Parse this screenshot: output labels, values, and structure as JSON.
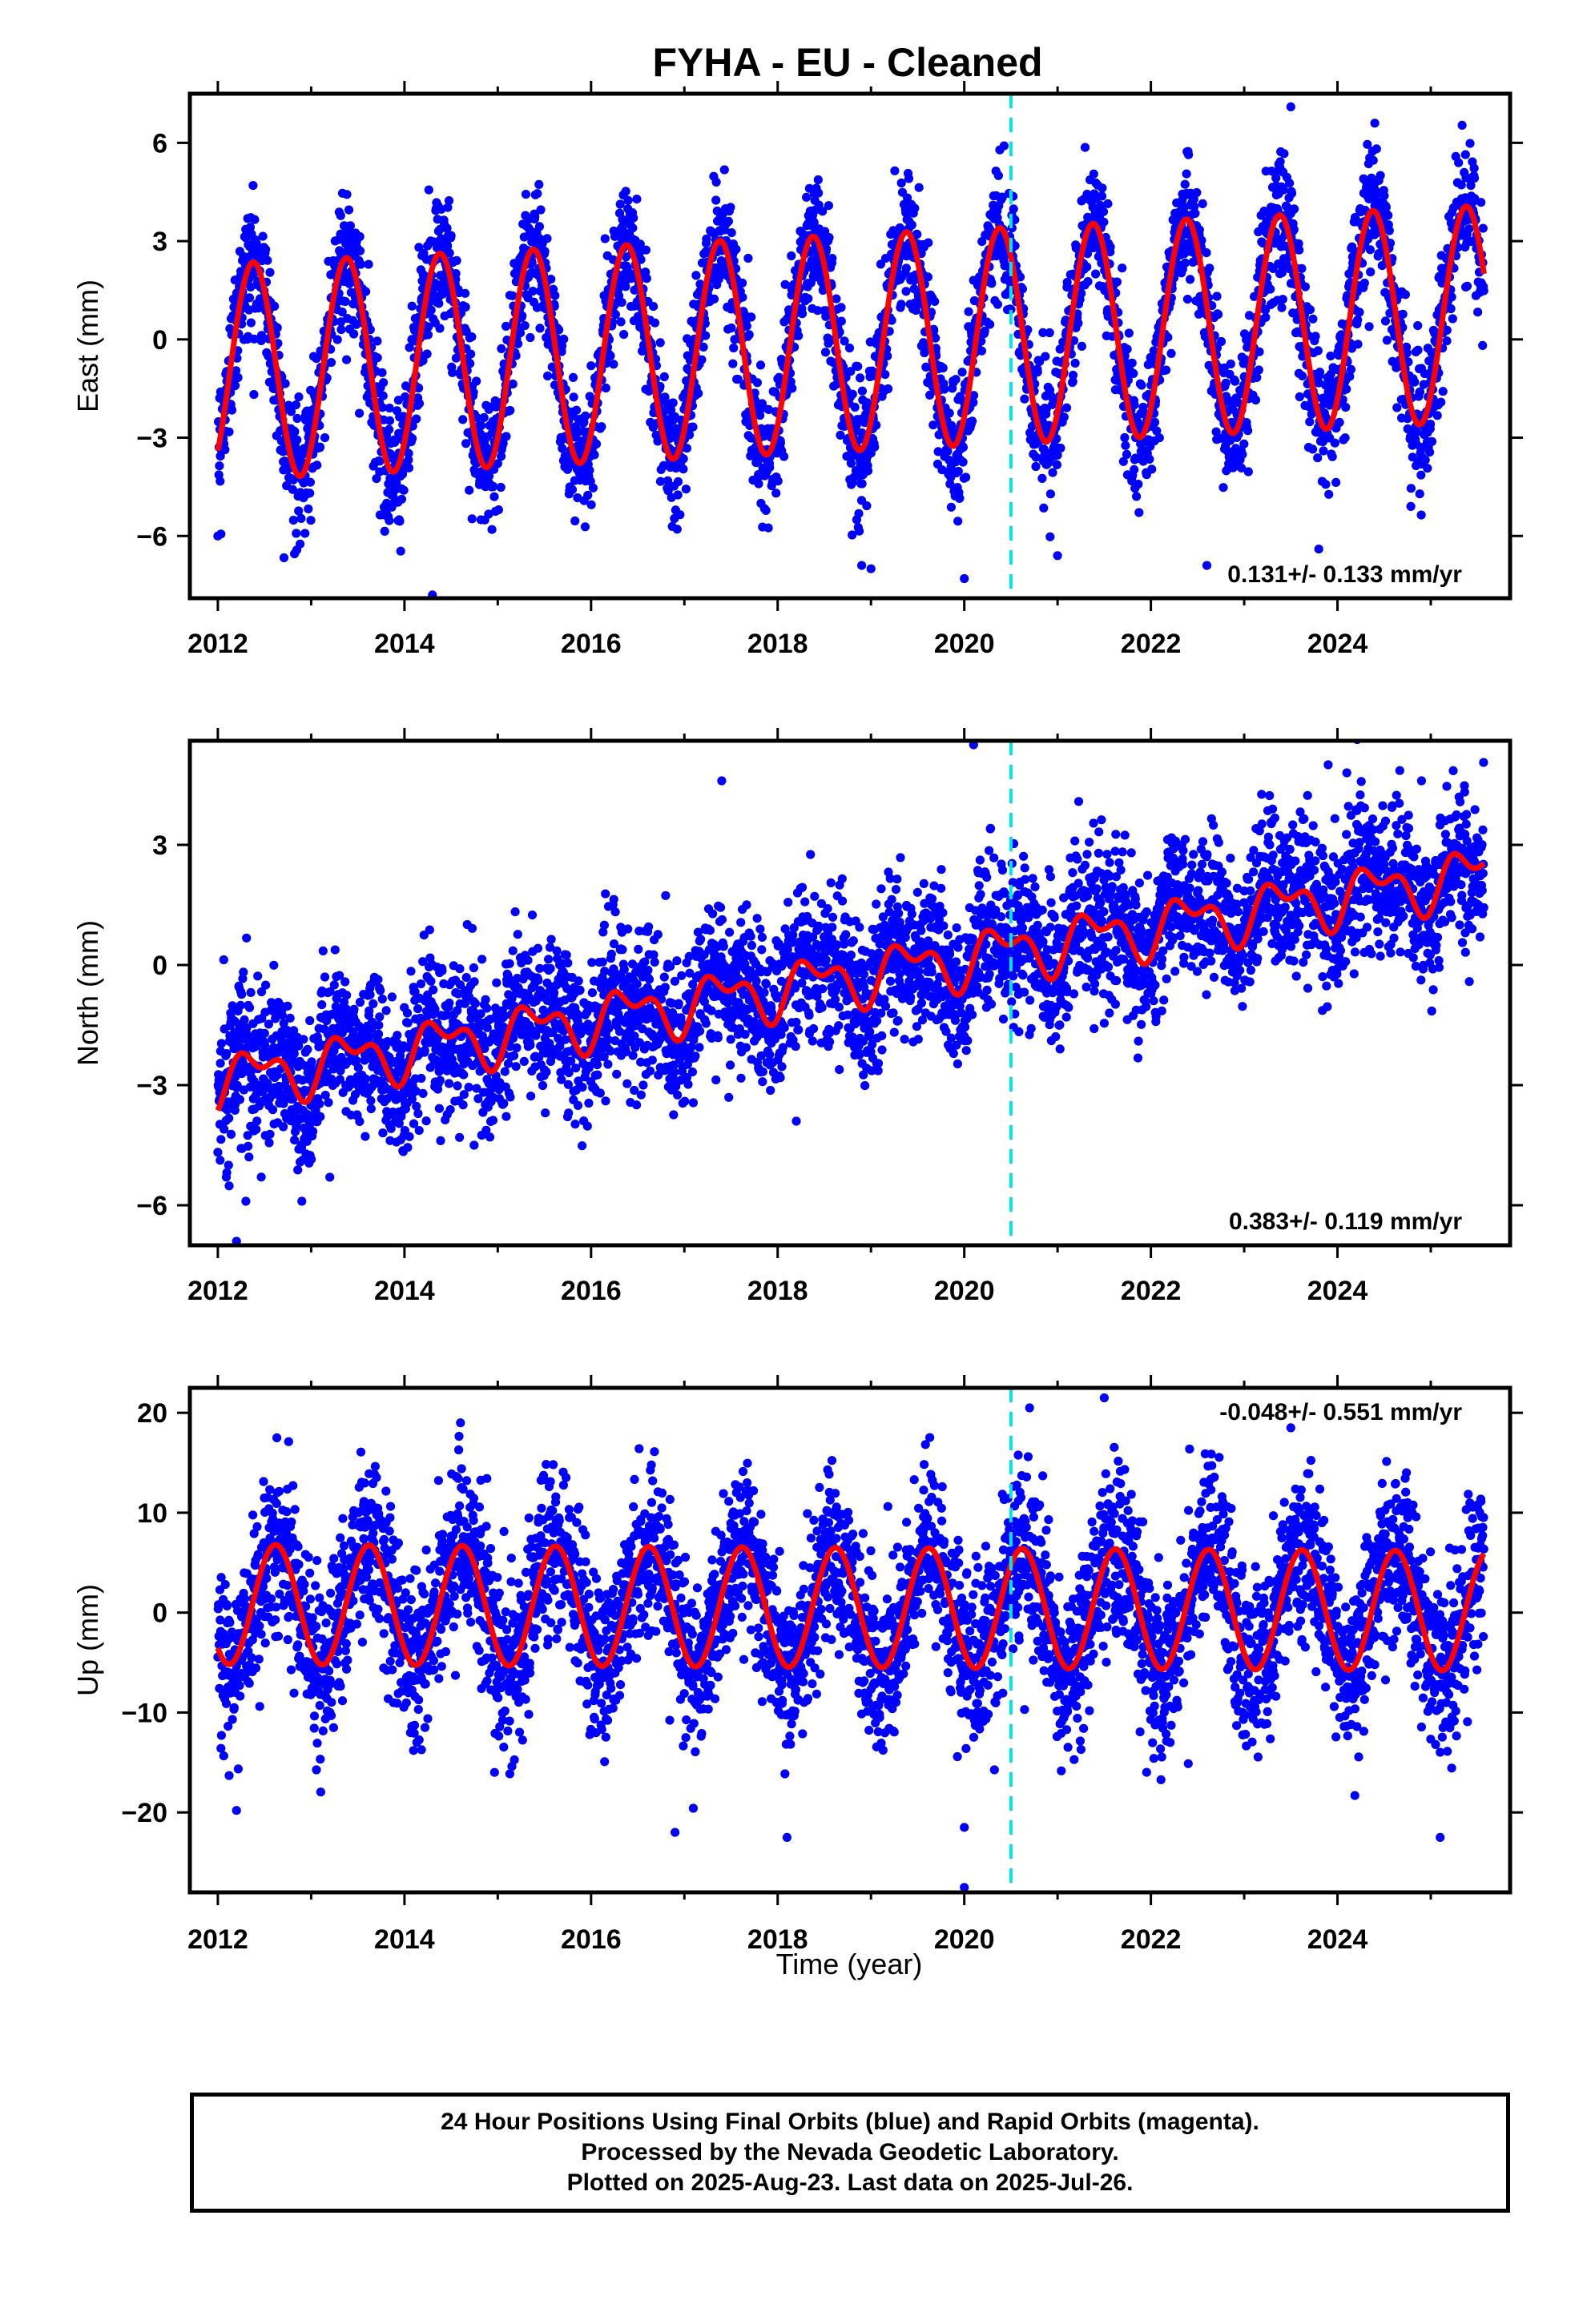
{
  "title": "FYHA  - EU - Cleaned",
  "xlabel": "Time (year)",
  "footer": {
    "line1": "24 Hour Positions Using Final Orbits (blue) and Rapid Orbits (magenta).",
    "line2": "Processed by the Nevada Geodetic Laboratory.",
    "line3": "Plotted on 2025-Aug-23. Last data on 2025-Jul-26."
  },
  "colors": {
    "points": "#0000ff",
    "model": "#ff0000",
    "event_line": "#00e5e5",
    "frame": "#000000"
  },
  "chart_data": [
    {
      "type": "scatter",
      "name": "east",
      "ylabel": "East (mm)",
      "rate": "0.131+/- 0.133 mm/yr",
      "rate_position": "bottom-right",
      "xlim": [
        2011.7,
        2025.85
      ],
      "ylim": [
        -7.9,
        7.5
      ],
      "xticks": [
        2012,
        2014,
        2016,
        2018,
        2020,
        2022,
        2024
      ],
      "yticks": [
        6,
        3,
        0,
        -3,
        -6
      ],
      "ytick_labels": [
        "6",
        "3",
        "0",
        "−3",
        "−6"
      ],
      "event_line_x": 2020.5,
      "data_range_x": [
        2012.0,
        2025.57
      ],
      "model": {
        "offset": -0.1,
        "trend": 0.131,
        "annual_amplitude": 3.3,
        "annual_peak_phase": 0.38,
        "semiannual_amplitude": 0.0,
        "semiannual_peak_phase": 0.0,
        "trend_ref_year": 2018.8
      },
      "scatter_sd": 1.0,
      "outliers": [
        [
          2014.3,
          -7.8
        ],
        [
          2012.0,
          -6.0
        ],
        [
          2018.9,
          -6.9
        ],
        [
          2021.0,
          -6.6
        ],
        [
          2019.0,
          -7.0
        ],
        [
          2023.8,
          -6.4
        ],
        [
          2020.0,
          -7.3
        ],
        [
          2022.6,
          -6.9
        ],
        [
          2023.5,
          7.1
        ],
        [
          2024.4,
          6.6
        ]
      ]
    },
    {
      "type": "scatter",
      "name": "north",
      "ylabel": "North (mm)",
      "rate": "0.383+/- 0.119 mm/yr",
      "rate_position": "bottom-right",
      "xlim": [
        2011.7,
        2025.85
      ],
      "ylim": [
        -7.0,
        5.6
      ],
      "xticks": [
        2012,
        2014,
        2016,
        2018,
        2020,
        2022,
        2024
      ],
      "yticks": [
        3,
        0,
        -3,
        -6
      ],
      "ytick_labels": [
        "3",
        "0",
        "−3",
        "−6"
      ],
      "event_line_x": 2020.5,
      "data_range_x": [
        2012.0,
        2025.57
      ],
      "model": {
        "offset": -0.3,
        "trend": 0.383,
        "annual_amplitude": 0.55,
        "annual_peak_phase": 0.4,
        "semiannual_amplitude": 0.35,
        "semiannual_peak_phase": 0.2,
        "trend_ref_year": 2018.8
      },
      "scatter_sd": 0.95,
      "outliers": [
        [
          2012.2,
          -6.9
        ],
        [
          2012.3,
          -5.9
        ],
        [
          2012.9,
          -5.9
        ],
        [
          2013.2,
          -5.3
        ],
        [
          2017.4,
          4.6
        ],
        [
          2020.1,
          5.5
        ],
        [
          2018.2,
          -3.9
        ],
        [
          2023.9,
          5.0
        ],
        [
          2024.1,
          4.8
        ],
        [
          2024.9,
          4.6
        ]
      ]
    },
    {
      "type": "scatter",
      "name": "up",
      "ylabel": "Up (mm)",
      "rate": "-0.048+/- 0.551 mm/yr",
      "rate_position": "top-right",
      "xlim": [
        2011.7,
        2025.85
      ],
      "ylim": [
        -28.0,
        22.5
      ],
      "xticks": [
        2012,
        2014,
        2016,
        2018,
        2020,
        2022,
        2024
      ],
      "yticks": [
        20,
        10,
        0,
        -10,
        -20
      ],
      "ytick_labels": [
        "20",
        "10",
        "0",
        "−10",
        "−20"
      ],
      "event_line_x": 2020.5,
      "data_range_x": [
        2012.0,
        2025.57
      ],
      "model": {
        "offset": 0.5,
        "trend": -0.048,
        "annual_amplitude": 6.0,
        "annual_peak_phase": 0.62,
        "semiannual_amplitude": 0.0,
        "semiannual_peak_phase": 0.0,
        "trend_ref_year": 2018.8
      },
      "scatter_sd": 4.2,
      "outliers": [
        [
          2020.0,
          -27.5
        ],
        [
          2021.5,
          21.5
        ],
        [
          2020.7,
          20.5
        ],
        [
          2012.2,
          -19.8
        ],
        [
          2016.9,
          -22.0
        ],
        [
          2018.1,
          -22.5
        ],
        [
          2020.0,
          -21.5
        ],
        [
          2025.1,
          -22.5
        ],
        [
          2014.6,
          19.0
        ],
        [
          2023.5,
          18.5
        ]
      ]
    }
  ]
}
